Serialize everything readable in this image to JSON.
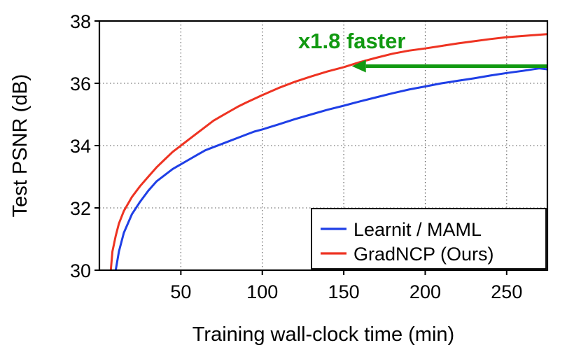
{
  "chart_data": {
    "type": "line",
    "title": "",
    "xlabel": "Training wall-clock time (min)",
    "ylabel": "Test PSNR (dB)",
    "xlim": [
      0,
      275
    ],
    "ylim": [
      30,
      38
    ],
    "xticks": [
      50,
      100,
      150,
      200,
      250
    ],
    "yticks": [
      30,
      32,
      34,
      36,
      38
    ],
    "grid": true,
    "legend_position": "lower-right",
    "series": [
      {
        "name": "Learnit / MAML",
        "color": "#1f3fe6",
        "x": [
          10,
          12,
          15,
          20,
          25,
          30,
          35,
          40,
          45,
          50,
          55,
          60,
          65,
          70,
          75,
          80,
          85,
          90,
          95,
          100,
          110,
          120,
          130,
          140,
          150,
          160,
          170,
          180,
          190,
          200,
          210,
          220,
          230,
          240,
          250,
          260,
          270,
          275
        ],
        "y": [
          30.0,
          30.6,
          31.2,
          31.8,
          32.2,
          32.55,
          32.85,
          33.05,
          33.25,
          33.4,
          33.55,
          33.7,
          33.85,
          33.95,
          34.05,
          34.15,
          34.25,
          34.35,
          34.45,
          34.52,
          34.68,
          34.85,
          35.0,
          35.15,
          35.28,
          35.42,
          35.55,
          35.68,
          35.8,
          35.9,
          36.0,
          36.08,
          36.16,
          36.25,
          36.33,
          36.4,
          36.48,
          36.45
        ]
      },
      {
        "name": "GradNCP (Ours)",
        "color": "#ee3322",
        "x": [
          7,
          8,
          10,
          12,
          15,
          20,
          25,
          30,
          35,
          40,
          45,
          50,
          55,
          60,
          65,
          70,
          75,
          80,
          85,
          90,
          95,
          100,
          110,
          120,
          130,
          140,
          150,
          160,
          170,
          180,
          190,
          200,
          210,
          220,
          230,
          240,
          250,
          260,
          270,
          275
        ],
        "y": [
          30.0,
          30.6,
          31.1,
          31.5,
          31.9,
          32.35,
          32.7,
          33.0,
          33.3,
          33.55,
          33.8,
          34.0,
          34.2,
          34.4,
          34.6,
          34.8,
          34.95,
          35.1,
          35.25,
          35.38,
          35.5,
          35.62,
          35.85,
          36.05,
          36.22,
          36.38,
          36.52,
          36.68,
          36.82,
          36.95,
          37.05,
          37.12,
          37.2,
          37.28,
          37.35,
          37.42,
          37.48,
          37.52,
          37.56,
          37.58
        ]
      }
    ],
    "annotations": [
      {
        "text": "x1.8 faster",
        "color": "#119911",
        "arrow_from": [
          275,
          36.55
        ],
        "arrow_to": [
          155,
          36.55
        ],
        "text_x": 155,
        "text_y": 37.35
      }
    ]
  }
}
